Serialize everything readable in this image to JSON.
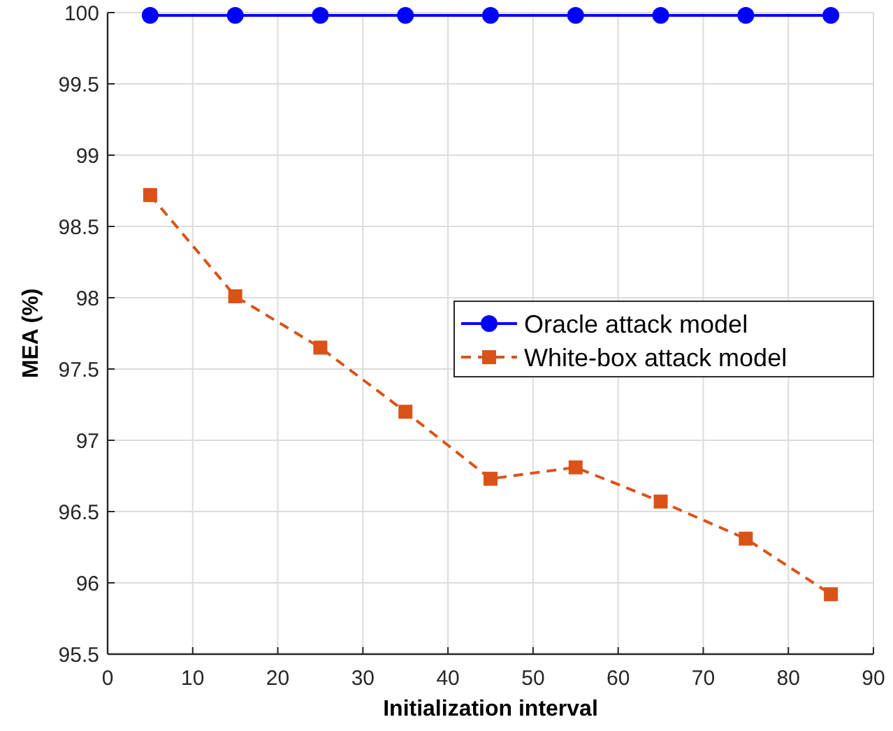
{
  "chart_data": {
    "type": "line",
    "xlabel": "Initialization interval",
    "ylabel": "MEA (%)",
    "x": [
      5,
      15,
      25,
      35,
      45,
      55,
      65,
      75,
      85
    ],
    "xlim": [
      0,
      90
    ],
    "xticks": [
      0,
      10,
      20,
      30,
      40,
      50,
      60,
      70,
      80,
      90
    ],
    "ylim": [
      95.5,
      100
    ],
    "yticks": [
      95.5,
      96,
      96.5,
      97,
      97.5,
      98,
      98.5,
      99,
      99.5,
      100
    ],
    "grid": true,
    "legend": "right",
    "series": [
      {
        "name": "Oracle attack model",
        "color": "#0000ff",
        "marker": "circle",
        "line_style": "solid",
        "values": [
          99.98,
          99.98,
          99.98,
          99.98,
          99.98,
          99.98,
          99.98,
          99.98,
          99.98
        ]
      },
      {
        "name": "White-box attack model",
        "color": "#d95319",
        "marker": "square",
        "line_style": "dashed",
        "values": [
          98.72,
          98.01,
          97.65,
          97.2,
          96.73,
          96.81,
          96.57,
          96.31,
          95.92
        ]
      }
    ]
  }
}
